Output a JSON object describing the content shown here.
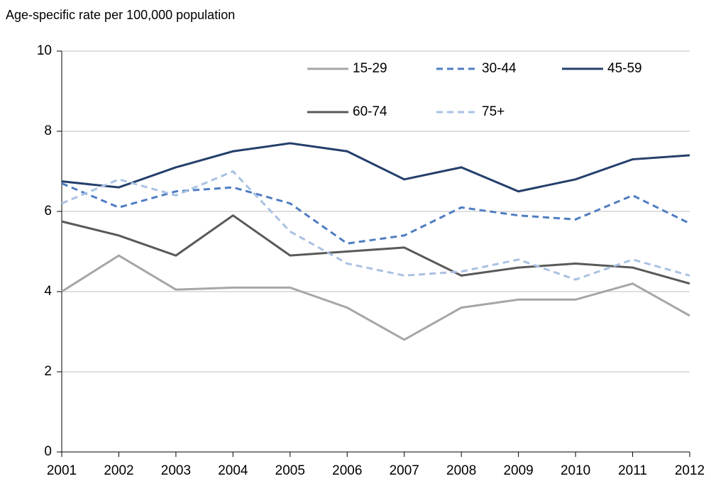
{
  "chart_data": {
    "type": "line",
    "title": "Age-specific rate per 100,000  population",
    "x": [
      2001,
      2002,
      2003,
      2004,
      2005,
      2006,
      2007,
      2008,
      2009,
      2010,
      2011,
      2012
    ],
    "xlim": [
      2001,
      2012
    ],
    "xticks": [
      2001,
      2002,
      2003,
      2004,
      2005,
      2006,
      2007,
      2008,
      2009,
      2010,
      2011,
      2012
    ],
    "ylim": [
      0,
      10
    ],
    "yticks": [
      0,
      2,
      4,
      6,
      8,
      10
    ],
    "grid": true,
    "legend": "upper right",
    "series": [
      {
        "name": "15-29",
        "color": "#a6a6a6",
        "style": "solid",
        "values": [
          4.0,
          4.9,
          4.05,
          4.1,
          4.1,
          3.6,
          2.8,
          3.6,
          3.8,
          3.8,
          4.2,
          3.4
        ]
      },
      {
        "name": "30-44",
        "color": "#4f7dc2",
        "style": "dashed",
        "values": [
          6.7,
          6.1,
          6.5,
          6.6,
          6.2,
          5.2,
          5.4,
          6.1,
          5.9,
          5.8,
          6.4,
          5.7
        ]
      },
      {
        "name": "45-59",
        "color": "#243f6b",
        "style": "solid",
        "values": [
          6.75,
          6.6,
          7.1,
          7.5,
          7.7,
          7.5,
          6.8,
          7.1,
          6.5,
          6.8,
          7.3,
          7.4
        ]
      },
      {
        "name": "60-74",
        "color": "#595959",
        "style": "solid",
        "values": [
          5.75,
          5.4,
          4.9,
          5.9,
          4.9,
          5.0,
          5.1,
          4.4,
          4.6,
          4.7,
          4.6,
          4.2
        ]
      },
      {
        "name": "75+",
        "color": "#a9c1e3",
        "style": "dashed",
        "values": [
          6.2,
          6.8,
          6.4,
          7.0,
          5.5,
          4.7,
          4.4,
          4.5,
          4.8,
          4.3,
          4.8,
          4.4
        ]
      }
    ]
  }
}
